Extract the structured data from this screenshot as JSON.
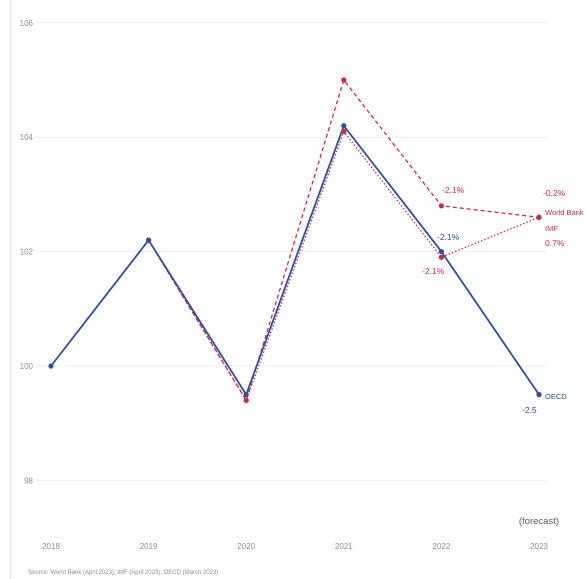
{
  "chart_data": {
    "type": "line",
    "categories": [
      "2018",
      "2019",
      "2020",
      "2021",
      "2022",
      "2023"
    ],
    "y_ticks": [
      98,
      100,
      102,
      104,
      106
    ],
    "ylim": [
      97,
      106
    ],
    "grid": true,
    "x_note": "(forecast)",
    "source": "Source: World Bank (April 2023), IMF (April 2023), OECD (March 2023)",
    "colors": {
      "oecd": "#2f4f9a",
      "world_bank": "#cc2a4a",
      "imf": "#cc2a4a"
    },
    "series": [
      {
        "name": "OECD",
        "style": "solid",
        "x": [
          "2018",
          "2019",
          "2020",
          "2021",
          "2022",
          "2023"
        ],
        "values": [
          100.0,
          102.2,
          99.5,
          104.2,
          102.0,
          99.5
        ],
        "annotations": [
          {
            "x": "2022",
            "text": "-2.1%"
          },
          {
            "x": "2023",
            "text": "-2.5"
          }
        ]
      },
      {
        "name": "World Bank",
        "style": "dashed",
        "x": [
          "2019",
          "2020",
          "2021",
          "2022",
          "2023"
        ],
        "values": [
          102.2,
          99.4,
          105.0,
          102.8,
          102.6
        ],
        "annotations": [
          {
            "x": "2022",
            "text": "-2.1%"
          },
          {
            "x": "2023",
            "text": "-0.2%"
          }
        ]
      },
      {
        "name": "IMF",
        "style": "dotted",
        "x": [
          "2019",
          "2020",
          "2021",
          "2022",
          "2023"
        ],
        "values": [
          102.2,
          99.4,
          104.1,
          101.9,
          102.6
        ],
        "annotations": [
          {
            "x": "2022",
            "text": "-2.1%"
          },
          {
            "x": "2023",
            "text": "0.7%"
          }
        ]
      }
    ]
  }
}
